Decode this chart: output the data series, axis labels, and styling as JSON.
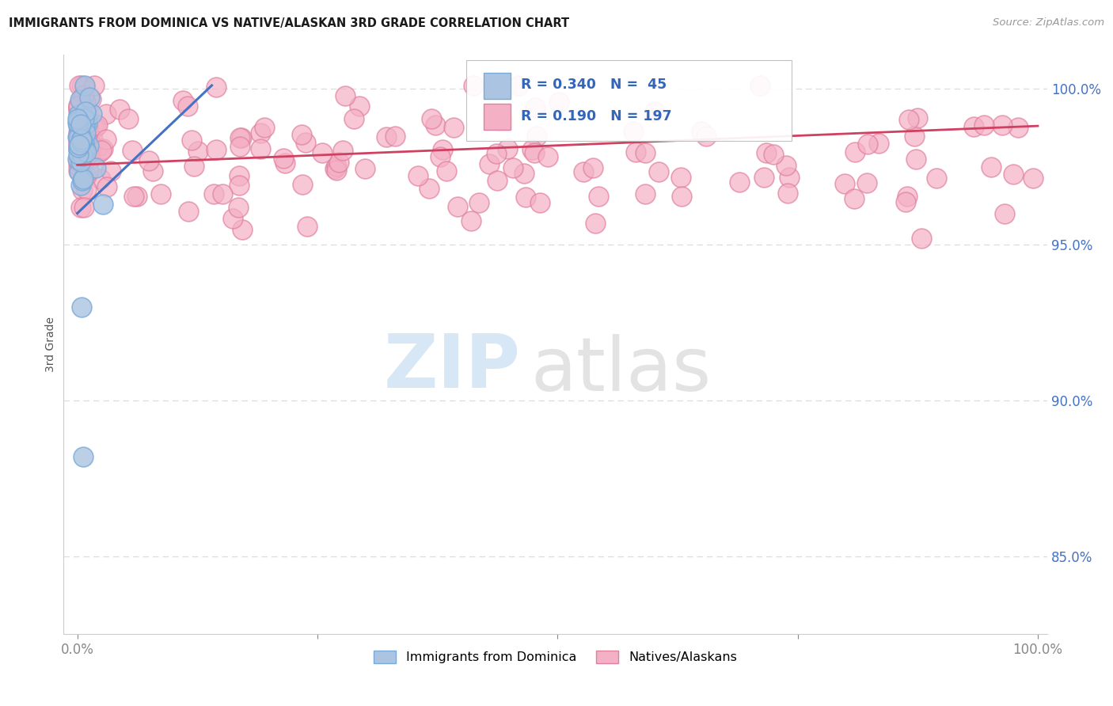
{
  "title": "IMMIGRANTS FROM DOMINICA VS NATIVE/ALASKAN 3RD GRADE CORRELATION CHART",
  "source_text": "Source: ZipAtlas.com",
  "ylabel": "3rd Grade",
  "blue_R": 0.34,
  "blue_N": 45,
  "pink_R": 0.19,
  "pink_N": 197,
  "blue_label": "Immigrants from Dominica",
  "pink_label": "Natives/Alaskans",
  "blue_color": "#aac4e2",
  "blue_line_color": "#4472c4",
  "pink_color": "#f4b0c4",
  "pink_line_color": "#d04060",
  "blue_edge_color": "#7aaad8",
  "pink_edge_color": "#e080a0",
  "grid_color": "#dddddd",
  "background_color": "#ffffff",
  "yticks": [
    0.85,
    0.9,
    0.95,
    1.0
  ],
  "ytick_labels": [
    "85.0%",
    "90.0%",
    "95.0%",
    "100.0%"
  ]
}
